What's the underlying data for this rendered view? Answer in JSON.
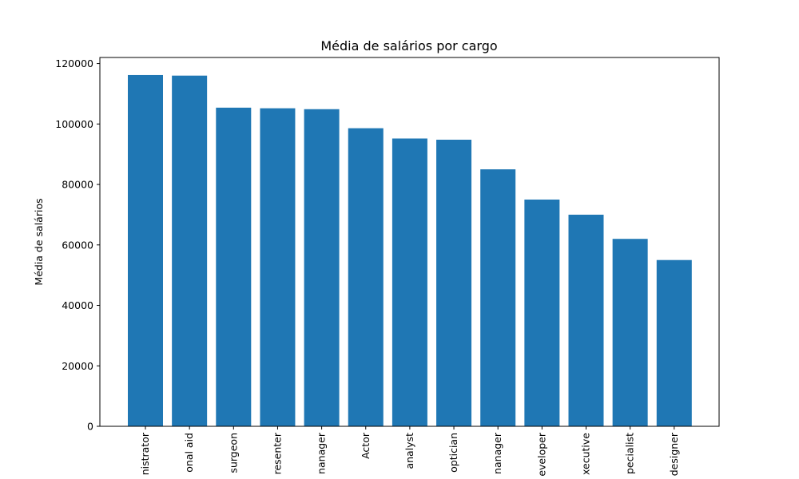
{
  "chart_data": {
    "type": "bar",
    "title": "Média de salários por cargo",
    "xlabel": "",
    "ylabel": "Média de salários",
    "categories": [
      "nistrator",
      "onal aid",
      "surgeon",
      "resenter",
      "nanager",
      "Actor",
      "analyst",
      "optician",
      "nanager",
      "eveloper",
      "xecutive",
      "pecialist",
      "designer"
    ],
    "values": [
      116200,
      116000,
      105400,
      105200,
      104900,
      98600,
      95200,
      94800,
      85000,
      75000,
      70000,
      62000,
      55000
    ],
    "ylim": [
      0,
      122000
    ],
    "yticks": [
      0,
      20000,
      40000,
      60000,
      80000,
      100000,
      120000
    ],
    "bar_color": "#1f77b4",
    "grid": false,
    "legend": "none"
  }
}
